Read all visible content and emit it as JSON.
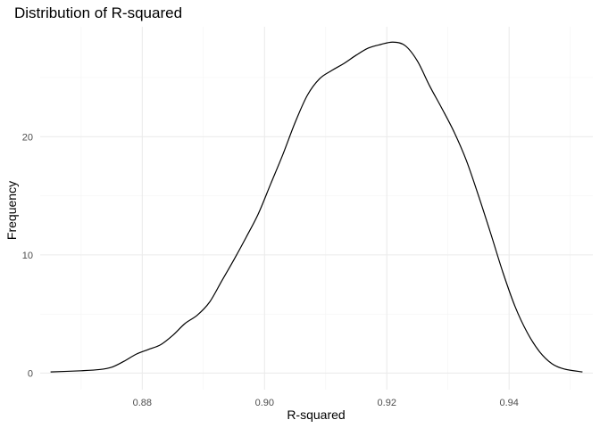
{
  "chart_data": {
    "type": "line",
    "title": "Distribution of R-squared",
    "xlabel": "R-squared",
    "ylabel": "Frequency",
    "xlim": [
      0.8633,
      0.9537
    ],
    "ylim": [
      -1.4,
      29.3
    ],
    "x_ticks": [
      0.88,
      0.9,
      0.92,
      0.94
    ],
    "x_tick_labels": [
      "0.88",
      "0.90",
      "0.92",
      "0.94"
    ],
    "y_ticks": [
      0,
      10,
      20
    ],
    "y_tick_labels": [
      "0",
      "10",
      "20"
    ],
    "grid": true,
    "legend": "none",
    "line_color": "#000000",
    "series": [
      {
        "x": [
          0.865,
          0.87,
          0.873,
          0.875,
          0.877,
          0.879,
          0.881,
          0.883,
          0.885,
          0.887,
          0.889,
          0.891,
          0.893,
          0.895,
          0.897,
          0.899,
          0.901,
          0.903,
          0.905,
          0.907,
          0.909,
          0.911,
          0.913,
          0.915,
          0.917,
          0.919,
          0.921,
          0.923,
          0.925,
          0.927,
          0.929,
          0.931,
          0.933,
          0.935,
          0.937,
          0.939,
          0.941,
          0.943,
          0.945,
          0.947,
          0.949,
          0.952
        ],
        "y": [
          0.1,
          0.2,
          0.3,
          0.5,
          1.0,
          1.6,
          2.0,
          2.4,
          3.2,
          4.2,
          4.9,
          6.0,
          7.8,
          9.6,
          11.5,
          13.5,
          16.0,
          18.5,
          21.2,
          23.5,
          24.9,
          25.6,
          26.2,
          26.9,
          27.5,
          27.8,
          28.0,
          27.7,
          26.4,
          24.3,
          22.4,
          20.4,
          18.0,
          15.0,
          11.8,
          8.5,
          5.6,
          3.4,
          1.8,
          0.8,
          0.35,
          0.1
        ]
      }
    ]
  }
}
